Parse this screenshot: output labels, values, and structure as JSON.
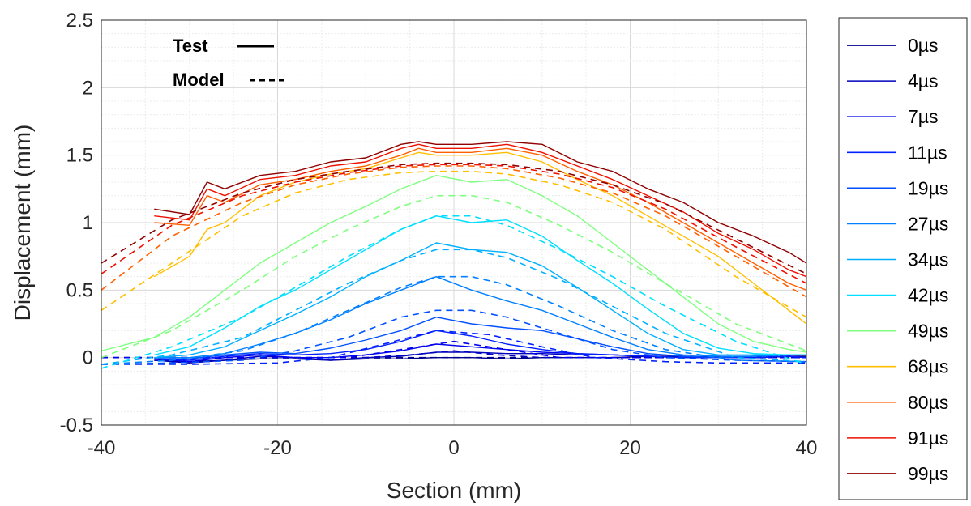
{
  "chart_data": {
    "type": "line",
    "title": "",
    "xlabel": "Section (mm)",
    "ylabel": "Displacement (mm)",
    "xlim": [
      -40,
      40
    ],
    "ylim": [
      -0.5,
      2.5
    ],
    "xticks": [
      -40,
      -20,
      0,
      20,
      40
    ],
    "xtick_labels": [
      "-40",
      "-20",
      "0",
      "20",
      "40"
    ],
    "yticks": [
      -0.5,
      0,
      0.5,
      1,
      1.5,
      2,
      2.5
    ],
    "ytick_labels": [
      "-0.5",
      "0",
      "0.5",
      "1",
      "1.5",
      "2",
      "2.5"
    ],
    "grid": true,
    "minor_grid": true,
    "legend_position": "outside-right",
    "annotations": [
      {
        "text": "Test",
        "style": "solid"
      },
      {
        "text": "Model",
        "style": "dashed"
      }
    ],
    "series": [
      {
        "name": "0µs",
        "color": "#00008f",
        "test": {
          "x": [
            -34,
            -30,
            -26,
            -22,
            -18,
            -14,
            -10,
            -6,
            -2,
            2,
            6,
            10,
            14,
            18,
            22,
            26,
            30,
            34,
            38,
            40
          ],
          "y": [
            -0.02,
            -0.03,
            -0.02,
            -0.01,
            -0.01,
            -0.02,
            -0.01,
            -0.01,
            0.0,
            0.0,
            -0.01,
            0.0,
            0.0,
            0.0,
            0.01,
            0.01,
            0.0,
            0.0,
            0.01,
            0.01
          ]
        },
        "model": {
          "x": [
            -40,
            -30,
            -20,
            -10,
            0,
            10,
            20,
            30,
            40
          ],
          "y": [
            0,
            0,
            0,
            0,
            0,
            0,
            0,
            0,
            0
          ]
        }
      },
      {
        "name": "4µs",
        "color": "#0000bf",
        "test": {
          "x": [
            -34,
            -30,
            -26,
            -22,
            -18,
            -14,
            -10,
            -6,
            -2,
            2,
            6,
            10,
            14,
            18,
            22,
            26,
            30,
            34,
            38,
            40
          ],
          "y": [
            -0.02,
            -0.04,
            -0.02,
            0.01,
            0.0,
            -0.02,
            0.0,
            0.01,
            0.04,
            0.04,
            0.03,
            0.03,
            0.02,
            0.02,
            0.01,
            0.0,
            0.01,
            0.0,
            0.01,
            0.0
          ]
        },
        "model": {
          "x": [
            -40,
            -30,
            -20,
            -10,
            -5,
            0,
            5,
            10,
            20,
            30,
            40
          ],
          "y": [
            0,
            0,
            0,
            0.0,
            0.02,
            0.05,
            0.02,
            0,
            0,
            0,
            0
          ]
        }
      },
      {
        "name": "7µs",
        "color": "#0000ef",
        "test": {
          "x": [
            -34,
            -30,
            -26,
            -22,
            -18,
            -14,
            -10,
            -6,
            -2,
            2,
            6,
            10,
            14,
            18,
            22,
            26,
            30,
            34,
            38,
            40
          ],
          "y": [
            -0.01,
            -0.03,
            0.0,
            0.02,
            0.0,
            0.0,
            0.02,
            0.05,
            0.1,
            0.08,
            0.06,
            0.04,
            0.03,
            0.02,
            0.01,
            0.0,
            0.0,
            0.0,
            0.01,
            0.0
          ]
        },
        "model": {
          "x": [
            -40,
            -30,
            -20,
            -12,
            -6,
            0,
            6,
            12,
            20,
            30,
            40
          ],
          "y": [
            0,
            0,
            0,
            0.0,
            0.06,
            0.12,
            0.06,
            0.0,
            0,
            0,
            0
          ]
        }
      },
      {
        "name": "11µs",
        "color": "#0020ff",
        "test": {
          "x": [
            -34,
            -30,
            -26,
            -22,
            -18,
            -14,
            -10,
            -6,
            -2,
            2,
            6,
            10,
            14,
            18,
            22,
            26,
            30,
            34,
            38,
            40
          ],
          "y": [
            -0.01,
            -0.02,
            0.01,
            0.03,
            0.02,
            0.03,
            0.06,
            0.12,
            0.2,
            0.16,
            0.1,
            0.06,
            0.03,
            0.02,
            0.01,
            0.0,
            0.0,
            0.0,
            0.01,
            0.0
          ]
        },
        "model": {
          "x": [
            -40,
            -30,
            -20,
            -14,
            -8,
            -2,
            4,
            10,
            16,
            24,
            30,
            40
          ],
          "y": [
            -0.05,
            -0.05,
            -0.04,
            0.0,
            0.1,
            0.2,
            0.17,
            0.08,
            0.0,
            -0.03,
            -0.04,
            -0.04
          ]
        }
      },
      {
        "name": "19µs",
        "color": "#0050ff",
        "test": {
          "x": [
            -34,
            -30,
            -26,
            -22,
            -18,
            -14,
            -10,
            -6,
            -2,
            2,
            6,
            10,
            14,
            18,
            22,
            26,
            30,
            34,
            38,
            40
          ],
          "y": [
            -0.01,
            -0.01,
            0.02,
            0.04,
            0.03,
            0.07,
            0.13,
            0.2,
            0.3,
            0.25,
            0.22,
            0.2,
            0.14,
            0.08,
            0.03,
            0.01,
            0.0,
            0.01,
            0.02,
            0.02
          ]
        },
        "model": {
          "x": [
            -40,
            -32,
            -24,
            -18,
            -12,
            -6,
            -2,
            2,
            6,
            12,
            18,
            24,
            32,
            40
          ],
          "y": [
            -0.05,
            -0.04,
            -0.02,
            0.05,
            0.15,
            0.3,
            0.35,
            0.35,
            0.3,
            0.18,
            0.06,
            0.0,
            -0.02,
            -0.03
          ]
        }
      },
      {
        "name": "27µs",
        "color": "#0080ff",
        "test": {
          "x": [
            -34,
            -30,
            -26,
            -22,
            -18,
            -14,
            -10,
            -6,
            -2,
            2,
            6,
            10,
            14,
            18,
            22,
            26,
            30,
            34,
            38,
            40
          ],
          "y": [
            0.0,
            0.0,
            0.03,
            0.1,
            0.18,
            0.28,
            0.4,
            0.5,
            0.6,
            0.5,
            0.42,
            0.35,
            0.25,
            0.15,
            0.06,
            0.02,
            0.01,
            0.01,
            0.02,
            0.02
          ]
        },
        "model": {
          "x": [
            -40,
            -32,
            -24,
            -18,
            -12,
            -6,
            -2,
            2,
            6,
            12,
            18,
            24,
            32,
            40
          ],
          "y": [
            -0.05,
            -0.02,
            0.05,
            0.18,
            0.35,
            0.52,
            0.6,
            0.6,
            0.54,
            0.38,
            0.2,
            0.06,
            -0.02,
            -0.03
          ]
        }
      },
      {
        "name": "34µs",
        "color": "#00afff",
        "test": {
          "x": [
            -34,
            -30,
            -26,
            -22,
            -18,
            -14,
            -10,
            -6,
            -2,
            2,
            6,
            10,
            14,
            18,
            22,
            26,
            30,
            34,
            38,
            40
          ],
          "y": [
            0.0,
            0.02,
            0.08,
            0.2,
            0.32,
            0.45,
            0.6,
            0.72,
            0.85,
            0.8,
            0.78,
            0.68,
            0.52,
            0.35,
            0.18,
            0.06,
            0.02,
            0.02,
            0.02,
            0.02
          ]
        },
        "model": {
          "x": [
            -40,
            -32,
            -24,
            -18,
            -12,
            -6,
            -2,
            2,
            6,
            12,
            18,
            24,
            32,
            40
          ],
          "y": [
            -0.05,
            0.02,
            0.15,
            0.35,
            0.55,
            0.72,
            0.8,
            0.8,
            0.74,
            0.58,
            0.38,
            0.18,
            0.0,
            -0.03
          ]
        }
      },
      {
        "name": "42µs",
        "color": "#00dfff",
        "test": {
          "x": [
            -34,
            -30,
            -26,
            -22,
            -18,
            -14,
            -10,
            -6,
            -2,
            2,
            6,
            10,
            14,
            18,
            22,
            26,
            30,
            34,
            38,
            40
          ],
          "y": [
            0.02,
            0.08,
            0.22,
            0.38,
            0.5,
            0.65,
            0.8,
            0.95,
            1.05,
            1.0,
            1.02,
            0.9,
            0.72,
            0.55,
            0.36,
            0.18,
            0.07,
            0.03,
            0.02,
            0.02
          ]
        },
        "model": {
          "x": [
            -40,
            -32,
            -24,
            -18,
            -12,
            -6,
            -2,
            2,
            6,
            12,
            18,
            24,
            32,
            40
          ],
          "y": [
            -0.08,
            0.08,
            0.3,
            0.52,
            0.75,
            0.95,
            1.05,
            1.05,
            0.98,
            0.8,
            0.6,
            0.38,
            0.12,
            -0.05
          ]
        }
      },
      {
        "name": "49µs",
        "color": "#7fff7f",
        "test": {
          "x": [
            -40,
            -34,
            -30,
            -26,
            -22,
            -18,
            -14,
            -10,
            -6,
            -2,
            2,
            6,
            10,
            14,
            18,
            22,
            26,
            30,
            34,
            38,
            40
          ],
          "y": [
            0.05,
            0.15,
            0.3,
            0.5,
            0.7,
            0.85,
            1.0,
            1.12,
            1.25,
            1.35,
            1.3,
            1.32,
            1.2,
            1.05,
            0.85,
            0.65,
            0.45,
            0.25,
            0.12,
            0.06,
            0.04
          ]
        },
        "model": {
          "x": [
            -40,
            -32,
            -24,
            -18,
            -12,
            -6,
            -2,
            2,
            6,
            12,
            18,
            24,
            32,
            40
          ],
          "y": [
            0.0,
            0.2,
            0.5,
            0.75,
            0.95,
            1.12,
            1.2,
            1.2,
            1.15,
            0.98,
            0.78,
            0.55,
            0.25,
            0.05
          ]
        }
      },
      {
        "name": "68µs",
        "color": "#ffbf00",
        "test": {
          "x": [
            -34,
            -30,
            -28,
            -26,
            -22,
            -18,
            -14,
            -10,
            -6,
            -4,
            -2,
            2,
            6,
            10,
            14,
            18,
            22,
            26,
            30,
            34,
            38,
            40
          ],
          "y": [
            0.6,
            0.75,
            0.95,
            1.0,
            1.2,
            1.3,
            1.36,
            1.4,
            1.48,
            1.52,
            1.5,
            1.5,
            1.52,
            1.45,
            1.32,
            1.2,
            1.05,
            0.9,
            0.75,
            0.55,
            0.35,
            0.25
          ]
        },
        "model": {
          "x": [
            -40,
            -32,
            -24,
            -18,
            -12,
            -6,
            -2,
            2,
            6,
            12,
            18,
            24,
            32,
            40
          ],
          "y": [
            0.35,
            0.7,
            1.05,
            1.22,
            1.32,
            1.37,
            1.38,
            1.38,
            1.36,
            1.28,
            1.15,
            0.95,
            0.6,
            0.3
          ]
        }
      },
      {
        "name": "80µs",
        "color": "#ff6000",
        "test": {
          "x": [
            -34,
            -30,
            -28,
            -26,
            -22,
            -18,
            -14,
            -10,
            -6,
            -4,
            -2,
            2,
            6,
            10,
            14,
            18,
            22,
            26,
            30,
            34,
            38,
            40
          ],
          "y": [
            1.0,
            0.98,
            1.2,
            1.15,
            1.28,
            1.32,
            1.38,
            1.42,
            1.5,
            1.55,
            1.52,
            1.52,
            1.55,
            1.5,
            1.38,
            1.28,
            1.15,
            1.0,
            0.85,
            0.7,
            0.55,
            0.5
          ]
        },
        "model": {
          "x": [
            -40,
            -32,
            -24,
            -18,
            -12,
            -6,
            -2,
            2,
            6,
            12,
            18,
            24,
            32,
            40
          ],
          "y": [
            0.5,
            0.9,
            1.15,
            1.28,
            1.36,
            1.41,
            1.42,
            1.42,
            1.4,
            1.33,
            1.22,
            1.05,
            0.75,
            0.45
          ]
        }
      },
      {
        "name": "91µs",
        "color": "#ef1000",
        "test": {
          "x": [
            -34,
            -30,
            -28,
            -26,
            -22,
            -18,
            -14,
            -10,
            -6,
            -4,
            -2,
            2,
            6,
            10,
            14,
            18,
            22,
            26,
            30,
            34,
            38,
            40
          ],
          "y": [
            1.05,
            1.02,
            1.25,
            1.2,
            1.32,
            1.35,
            1.42,
            1.45,
            1.55,
            1.58,
            1.55,
            1.55,
            1.58,
            1.52,
            1.42,
            1.32,
            1.2,
            1.08,
            0.92,
            0.8,
            0.65,
            0.6
          ]
        },
        "model": {
          "x": [
            -40,
            -32,
            -24,
            -18,
            -12,
            -6,
            -2,
            2,
            6,
            12,
            18,
            24,
            32,
            40
          ],
          "y": [
            0.62,
            0.98,
            1.2,
            1.3,
            1.37,
            1.42,
            1.43,
            1.43,
            1.42,
            1.36,
            1.26,
            1.1,
            0.82,
            0.55
          ]
        }
      },
      {
        "name": "99µs",
        "color": "#8f0000",
        "test": {
          "x": [
            -34,
            -30,
            -28,
            -26,
            -22,
            -18,
            -14,
            -10,
            -6,
            -4,
            -2,
            2,
            6,
            10,
            14,
            18,
            22,
            26,
            30,
            34,
            38,
            40
          ],
          "y": [
            1.1,
            1.06,
            1.3,
            1.25,
            1.35,
            1.38,
            1.45,
            1.48,
            1.58,
            1.6,
            1.58,
            1.58,
            1.6,
            1.58,
            1.45,
            1.38,
            1.25,
            1.15,
            1.0,
            0.9,
            0.78,
            0.7
          ]
        },
        "model": {
          "x": [
            -40,
            -32,
            -24,
            -18,
            -12,
            -6,
            -2,
            2,
            6,
            12,
            18,
            24,
            32,
            40
          ],
          "y": [
            0.7,
            1.02,
            1.22,
            1.32,
            1.38,
            1.43,
            1.44,
            1.44,
            1.43,
            1.38,
            1.28,
            1.14,
            0.88,
            0.62
          ]
        }
      }
    ]
  }
}
